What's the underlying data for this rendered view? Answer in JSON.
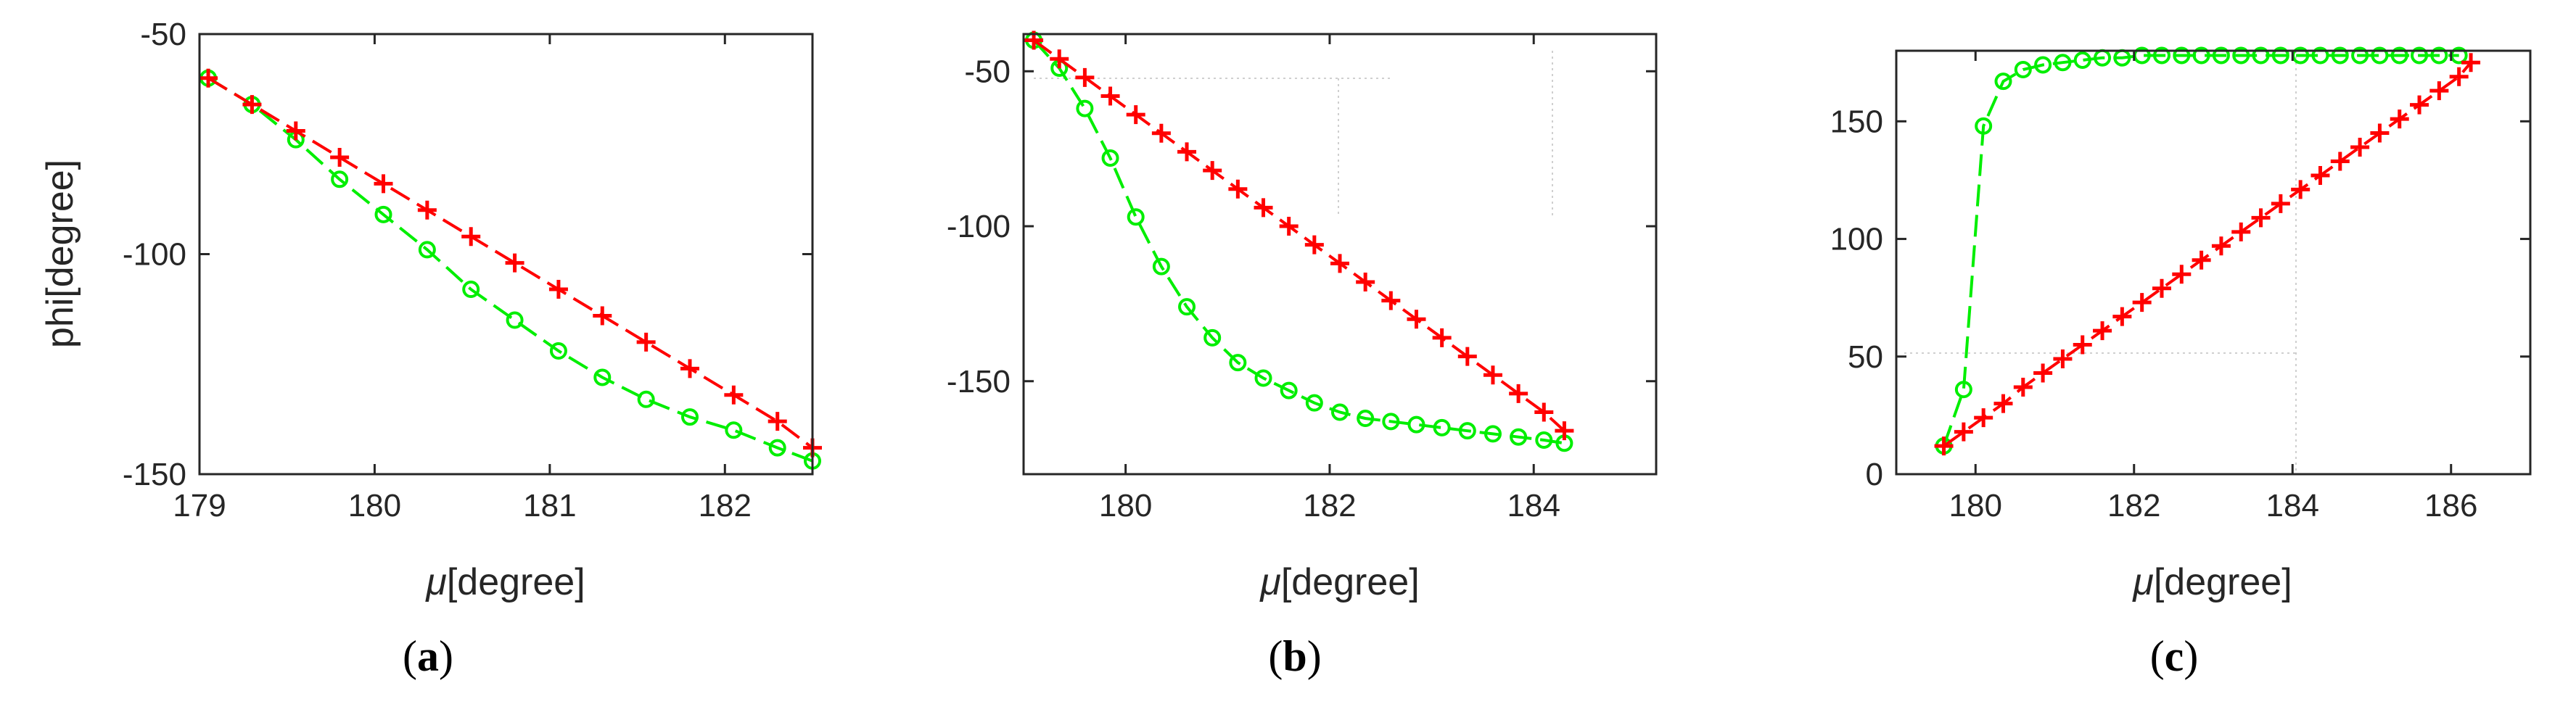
{
  "colors": {
    "series_green": "#00ee00",
    "series_red": "#ff0000",
    "axes": "#262626"
  },
  "chart_data": [
    {
      "type": "line",
      "panel_label": "a",
      "xlabel_symbol": "μ",
      "xlabel_unit": "[degree]",
      "ylabel": "phi[degree]",
      "xlim": [
        179,
        182.5
      ],
      "ylim": [
        -150,
        -50
      ],
      "xticks": [
        179,
        180,
        181,
        182
      ],
      "yticks": [
        -150,
        -100,
        -50
      ],
      "grid": false,
      "series": [
        {
          "name": "green-circle",
          "marker": "o",
          "x": [
            179.05,
            179.3,
            179.55,
            179.8,
            180.05,
            180.3,
            180.55,
            180.8,
            181.05,
            181.3,
            181.55,
            181.8,
            182.05,
            182.3,
            182.5
          ],
          "y": [
            -60,
            -66,
            -74,
            -83,
            -91,
            -99,
            -108,
            -115,
            -122,
            -128,
            -133,
            -137,
            -140,
            -144,
            -147
          ]
        },
        {
          "name": "red-plus",
          "marker": "+",
          "x": [
            179.05,
            179.3,
            179.55,
            179.8,
            180.05,
            180.3,
            180.55,
            180.8,
            181.05,
            181.3,
            181.55,
            181.8,
            182.05,
            182.3,
            182.5
          ],
          "y": [
            -60,
            -66,
            -72,
            -78,
            -84,
            -90,
            -96,
            -102,
            -108,
            -114,
            -120,
            -126,
            -132,
            -138,
            -144
          ]
        }
      ]
    },
    {
      "type": "line",
      "panel_label": "b",
      "xlabel_symbol": "μ",
      "xlabel_unit": "[degree]",
      "ylabel": "",
      "xlim": [
        179,
        185.2
      ],
      "ylim": [
        -180,
        -38
      ],
      "xticks": [
        180,
        182,
        184
      ],
      "yticks": [
        -150,
        -100,
        -50
      ],
      "grid": false,
      "series": [
        {
          "name": "green-circle",
          "marker": "o",
          "x": [
            179.1,
            179.35,
            179.6,
            179.85,
            180.1,
            180.35,
            180.6,
            180.85,
            181.1,
            181.35,
            181.6,
            181.85,
            182.1,
            182.35,
            182.6,
            182.85,
            183.1,
            183.35,
            183.6,
            183.85,
            184.1,
            184.3
          ],
          "y": [
            -40,
            -49,
            -62,
            -78,
            -97,
            -113,
            -126,
            -136,
            -144,
            -149,
            -153,
            -157,
            -160,
            -162,
            -163,
            -164,
            -165,
            -166,
            -167,
            -168,
            -169,
            -170
          ]
        },
        {
          "name": "red-plus",
          "marker": "+",
          "x": [
            179.1,
            179.35,
            179.6,
            179.85,
            180.1,
            180.35,
            180.6,
            180.85,
            181.1,
            181.35,
            181.6,
            181.85,
            182.1,
            182.35,
            182.6,
            182.85,
            183.1,
            183.35,
            183.6,
            183.85,
            184.1,
            184.3
          ],
          "y": [
            -40,
            -46,
            -52,
            -58,
            -64,
            -70,
            -76,
            -82,
            -88,
            -94,
            -100,
            -106,
            -112,
            -118,
            -124,
            -130,
            -136,
            -142,
            -148,
            -154,
            -160,
            -166
          ]
        }
      ]
    },
    {
      "type": "line",
      "panel_label": "c",
      "xlabel_symbol": "μ",
      "xlabel_unit": "[degree]",
      "ylabel": "",
      "xlim": [
        179,
        187
      ],
      "ylim": [
        0,
        180
      ],
      "xticks": [
        180,
        182,
        184,
        186
      ],
      "yticks": [
        0,
        50,
        100,
        150
      ],
      "grid": false,
      "series": [
        {
          "name": "green-circle",
          "marker": "o",
          "x": [
            179.6,
            179.85,
            180.1,
            180.35,
            180.6,
            180.85,
            181.1,
            181.35,
            181.6,
            181.85,
            182.1,
            182.35,
            182.6,
            182.85,
            183.1,
            183.35,
            183.6,
            183.85,
            184.1,
            184.35,
            184.6,
            184.85,
            185.1,
            185.35,
            185.6,
            185.85,
            186.1
          ],
          "y": [
            12,
            36,
            148,
            167,
            172,
            174,
            175,
            176,
            177,
            177,
            178,
            178,
            178,
            178,
            178,
            178,
            178,
            178,
            178,
            178,
            178,
            178,
            178,
            178,
            178,
            178,
            178
          ]
        },
        {
          "name": "red-plus",
          "marker": "+",
          "x": [
            179.6,
            179.85,
            180.1,
            180.35,
            180.6,
            180.85,
            181.1,
            181.35,
            181.6,
            181.85,
            182.1,
            182.35,
            182.6,
            182.85,
            183.1,
            183.35,
            183.6,
            183.85,
            184.1,
            184.35,
            184.6,
            184.85,
            185.1,
            185.35,
            185.6,
            185.85,
            186.1,
            186.25
          ],
          "y": [
            12,
            18,
            24,
            30,
            37,
            43,
            49,
            55,
            61,
            67,
            73,
            79,
            85,
            91,
            97,
            103,
            109,
            115,
            121,
            127,
            133,
            139,
            145,
            151,
            157,
            163,
            169,
            175
          ]
        }
      ]
    }
  ]
}
